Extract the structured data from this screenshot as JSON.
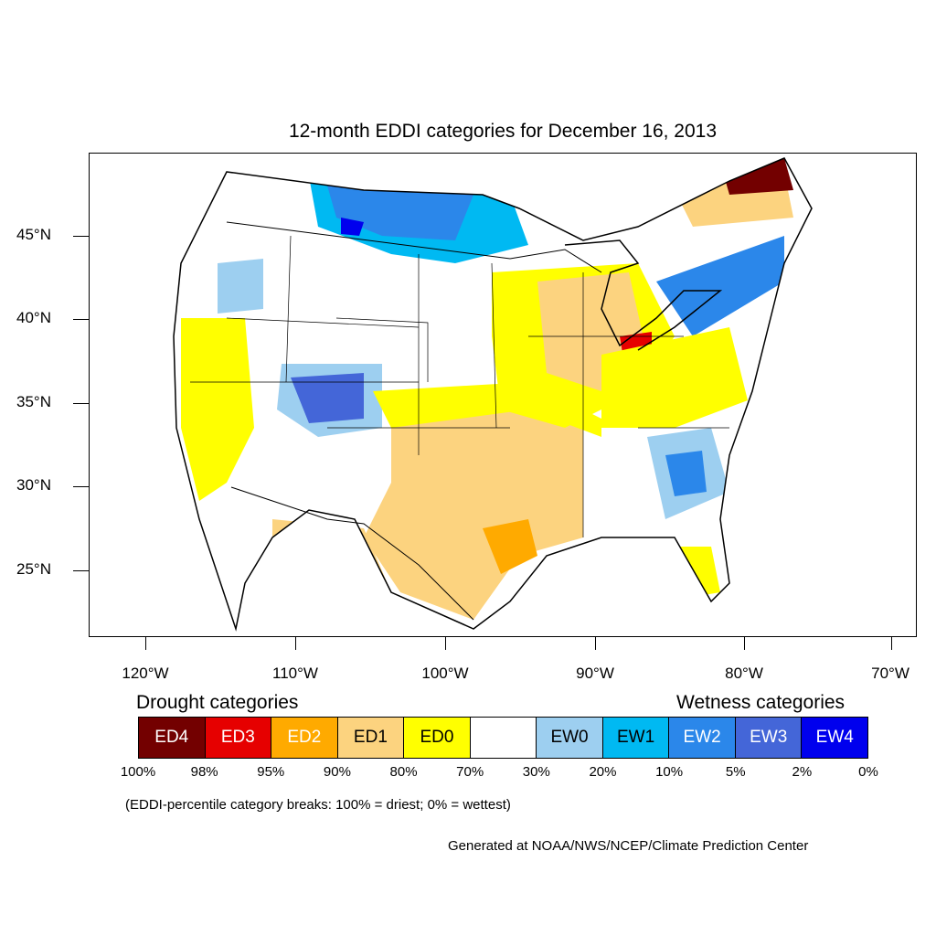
{
  "title": "12-month EDDI categories for December 16, 2013",
  "latitude_labels": [
    "45°N",
    "40°N",
    "35°N",
    "30°N",
    "25°N"
  ],
  "longitude_labels": [
    "120°W",
    "110°W",
    "100°W",
    "90°W",
    "80°W",
    "70°W"
  ],
  "legend": {
    "drought_heading": "Drought categories",
    "wetness_heading": "Wetness categories",
    "categories": [
      {
        "label": "ED4",
        "color": "#730000",
        "text_color": "#ffffff"
      },
      {
        "label": "ED3",
        "color": "#e60000",
        "text_color": "#ffffff"
      },
      {
        "label": "ED2",
        "color": "#ffaa00",
        "text_color": "#ffffff"
      },
      {
        "label": "ED1",
        "color": "#fcd37f",
        "text_color": "#000000"
      },
      {
        "label": "ED0",
        "color": "#ffff00",
        "text_color": "#000000"
      },
      {
        "label": "",
        "color": "#ffffff",
        "text_color": "#000000"
      },
      {
        "label": "EW0",
        "color": "#9dcff0",
        "text_color": "#000000"
      },
      {
        "label": "EW1",
        "color": "#00b9f2",
        "text_color": "#000000"
      },
      {
        "label": "EW2",
        "color": "#2b87ea",
        "text_color": "#ffffff"
      },
      {
        "label": "EW3",
        "color": "#4466d8",
        "text_color": "#ffffff"
      },
      {
        "label": "EW4",
        "color": "#0000ee",
        "text_color": "#ffffff"
      }
    ],
    "percentiles": [
      "100%",
      "98%",
      "95%",
      "90%",
      "80%",
      "70%",
      "30%",
      "20%",
      "10%",
      "5%",
      "2%",
      "0%"
    ]
  },
  "note": "(EDDI-percentile category breaks: 100% = driest; 0% = wettest)",
  "credit": "Generated at NOAA/NWS/NCEP/Climate Prediction Center"
}
